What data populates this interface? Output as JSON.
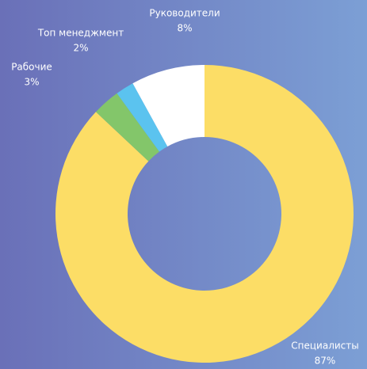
{
  "chart_data": {
    "type": "pie",
    "categories": [
      "Специалисты",
      "Рабочие",
      "Топ менеджмент",
      "Руководители"
    ],
    "values": [
      87,
      3,
      2,
      8
    ],
    "value_labels": [
      "87%",
      "3%",
      "2%",
      "8%"
    ],
    "colors": [
      "#fcdd66",
      "#83c66a",
      "#5bc3ef",
      "#ffffff"
    ]
  }
}
